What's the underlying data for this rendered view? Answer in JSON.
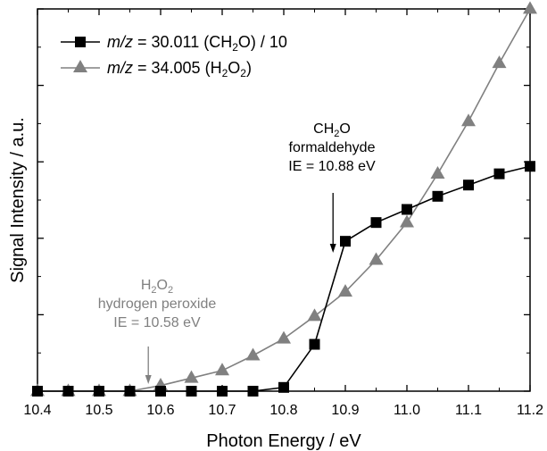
{
  "chart_data": {
    "type": "line",
    "xlabel": "Photon Energy / eV",
    "ylabel": "Signal Intensity / a.u.",
    "xlim": [
      10.4,
      11.2
    ],
    "ylim": [
      0,
      10.2
    ],
    "x_ticks": [
      "10.4",
      "10.5",
      "10.6",
      "10.7",
      "10.8",
      "10.9",
      "11.0",
      "11.1",
      "11.2"
    ],
    "y_tick_labels_shown": false,
    "grid": false,
    "legend_position": "top-left",
    "series": [
      {
        "name": "m/z = 30.011 (CH2O) / 10",
        "legend_parts": {
          "italic": "m/z",
          "text": " = 30.011 (CH",
          "sub": "2",
          "tail": "O) / 10"
        },
        "marker": "square",
        "color": "#000000",
        "x": [
          10.4,
          10.45,
          10.5,
          10.55,
          10.6,
          10.65,
          10.7,
          10.75,
          10.8,
          10.85,
          10.9,
          10.95,
          11.0,
          11.05,
          11.1,
          11.15,
          11.2
        ],
        "y": [
          0.0,
          0.0,
          0.0,
          0.0,
          0.0,
          0.0,
          0.0,
          0.0,
          0.1,
          1.25,
          4.0,
          4.5,
          4.85,
          5.2,
          5.5,
          5.8,
          6.0
        ]
      },
      {
        "name": "m/z = 34.005 (H2O2)",
        "legend_parts": {
          "italic": "m/z",
          "text": " = 34.005 (H",
          "sub": "2",
          "mid": "O",
          "sub2": "2",
          "tail": ")"
        },
        "marker": "triangle",
        "color": "#808080",
        "x": [
          10.4,
          10.45,
          10.5,
          10.55,
          10.6,
          10.65,
          10.7,
          10.75,
          10.8,
          10.85,
          10.9,
          10.95,
          11.0,
          11.05,
          11.1,
          11.15,
          11.2
        ],
        "y": [
          0.0,
          0.0,
          0.0,
          0.0,
          0.15,
          0.35,
          0.55,
          0.95,
          1.4,
          2.0,
          2.65,
          3.5,
          4.5,
          5.8,
          7.2,
          8.75,
          10.2
        ]
      }
    ],
    "annotations": [
      {
        "lines": [
          [
            "CH",
            "2",
            "O",
            ""
          ],
          [
            "formaldehyde",
            "",
            "",
            ""
          ],
          [
            "IE = 10.88 eV",
            "",
            "",
            ""
          ]
        ],
        "color": "#000000",
        "arrow_x": 10.88
      },
      {
        "lines": [
          [
            "H",
            "2",
            "O",
            "2"
          ],
          [
            "hydrogen peroxide",
            "",
            "",
            ""
          ],
          [
            "IE = 10.58 eV",
            "",
            "",
            ""
          ]
        ],
        "color": "#808080",
        "arrow_x": 10.58
      }
    ]
  }
}
